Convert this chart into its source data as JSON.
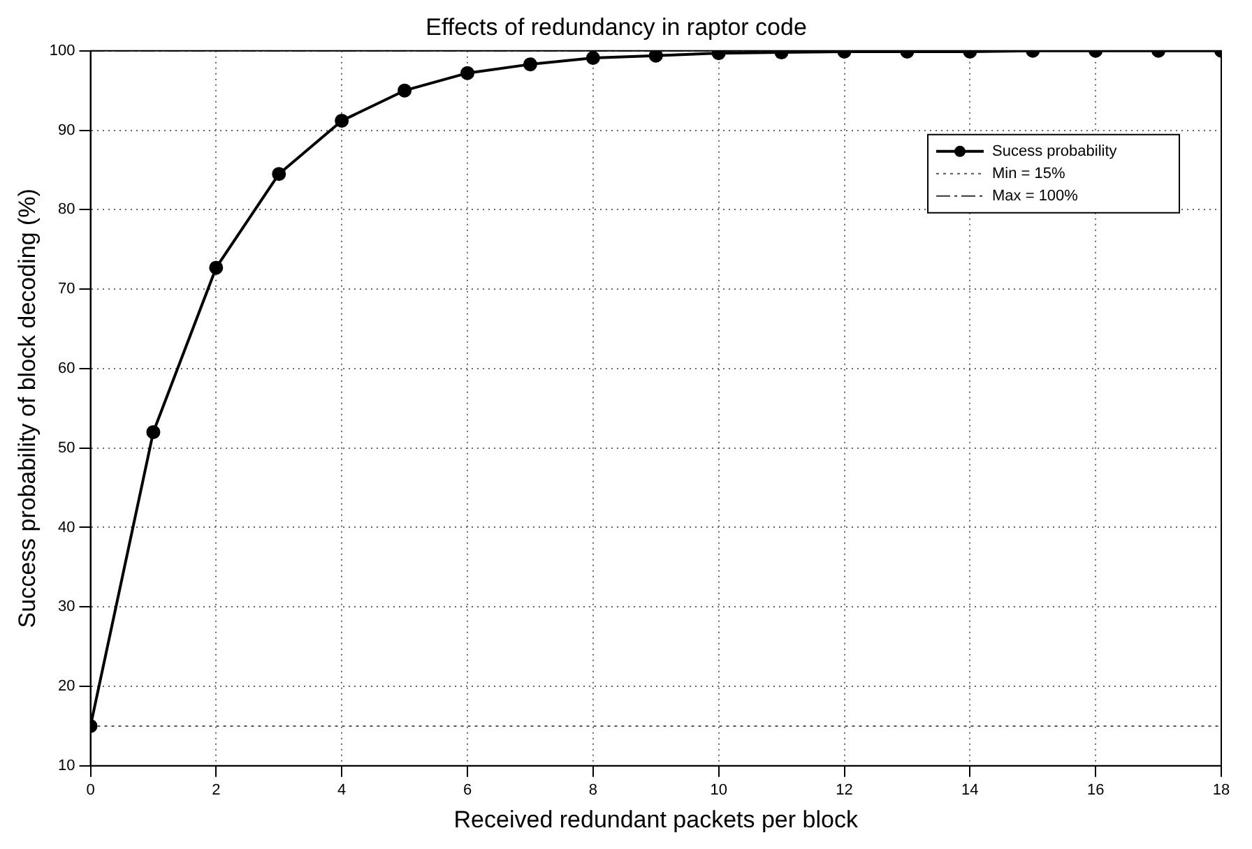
{
  "chart_data": {
    "type": "line",
    "title": "Effects of redundancy in raptor code",
    "xlabel": "Received redundant packets per block",
    "ylabel": "Success probability of block decoding (%)",
    "x": [
      0,
      1,
      2,
      3,
      4,
      5,
      6,
      7,
      8,
      9,
      10,
      11,
      12,
      13,
      14,
      15,
      16,
      17,
      18
    ],
    "series": [
      {
        "name": "Sucess probability",
        "color": "#000000",
        "values": [
          15,
          52,
          72.7,
          84.5,
          91.2,
          95,
          97.2,
          98.3,
          99.1,
          99.4,
          99.7,
          99.8,
          99.9,
          99.9,
          99.9,
          100,
          100,
          100,
          100
        ]
      }
    ],
    "xlim": [
      0,
      18
    ],
    "xticks": [
      0,
      2,
      4,
      6,
      8,
      10,
      12,
      14,
      16,
      18
    ],
    "ylim": [
      10,
      100
    ],
    "yticks": [
      10,
      20,
      30,
      40,
      50,
      60,
      70,
      80,
      90,
      100
    ],
    "ref_lines": [
      {
        "axis": "y",
        "value": 15,
        "label": "Min = 15%",
        "color": "#555555",
        "line_style": "dotted"
      },
      {
        "axis": "y",
        "value": 100,
        "label": "Max = 100%",
        "color": "#333333",
        "line_style": "dashdot"
      }
    ],
    "grid": true,
    "legend": "top right",
    "marker": "circle",
    "line_style": "solid"
  }
}
